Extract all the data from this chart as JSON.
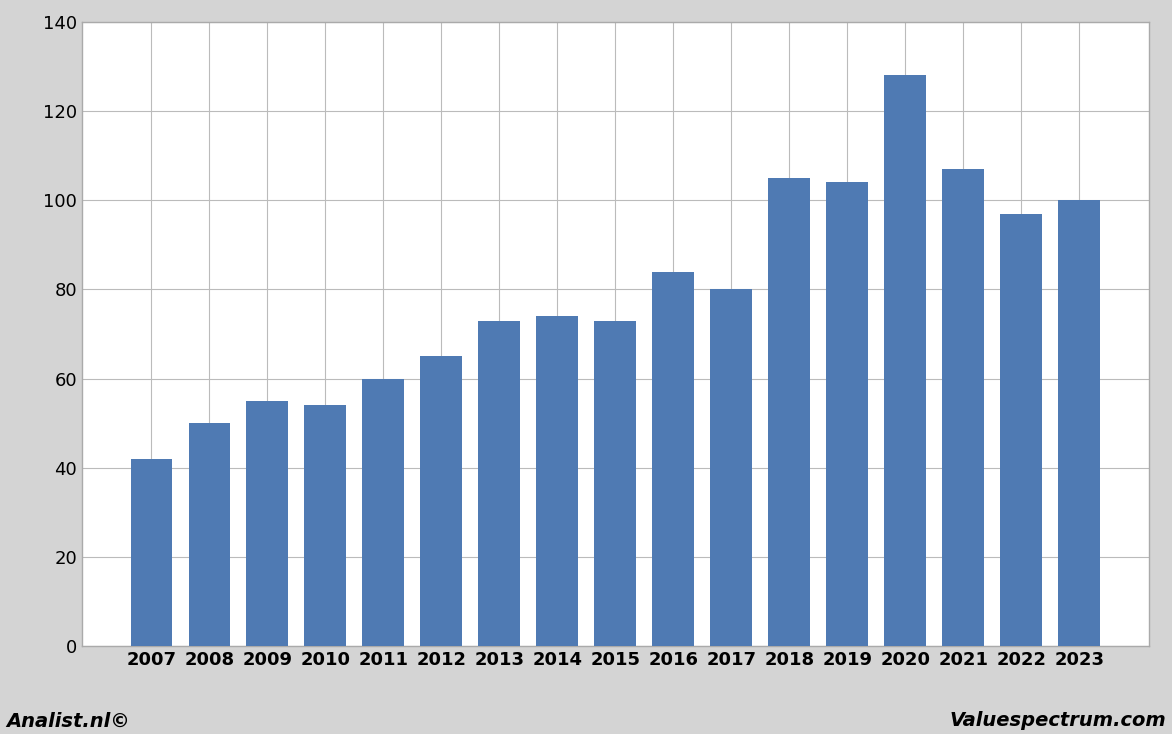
{
  "years": [
    2007,
    2008,
    2009,
    2010,
    2011,
    2012,
    2013,
    2014,
    2015,
    2016,
    2017,
    2018,
    2019,
    2020,
    2021,
    2022,
    2023
  ],
  "values": [
    42,
    50,
    55,
    54,
    60,
    65,
    73,
    74,
    73,
    84,
    80,
    105,
    104,
    128,
    107,
    97,
    100
  ],
  "bar_color": "#4f7ab3",
  "ylim": [
    0,
    140
  ],
  "yticks": [
    0,
    20,
    40,
    60,
    80,
    100,
    120,
    140
  ],
  "figure_bg_color": "#d4d4d4",
  "plot_bg_color": "#ffffff",
  "footer_bg_color": "#d4d4d4",
  "grid_color": "#bbbbbb",
  "border_color": "#aaaaaa",
  "footer_left": "Analist.nl©",
  "footer_right": "Valuespectrum.com",
  "footer_fontsize": 14,
  "tick_fontsize": 13,
  "bar_edge_color": "none",
  "bar_linewidth": 0,
  "bar_width": 0.72
}
